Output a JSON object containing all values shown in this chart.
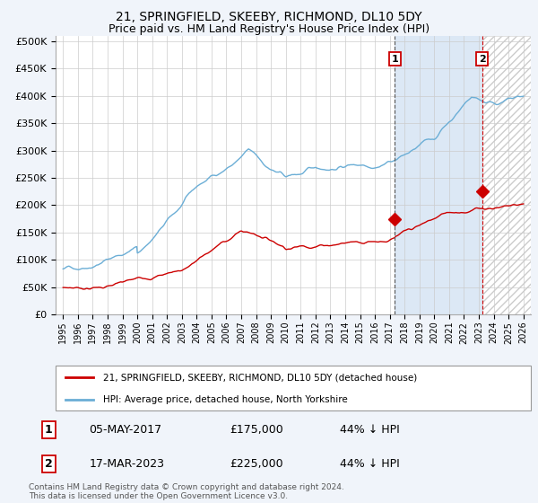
{
  "title": "21, SPRINGFIELD, SKEEBY, RICHMOND, DL10 5DY",
  "subtitle": "Price paid vs. HM Land Registry's House Price Index (HPI)",
  "yticks": [
    0,
    50000,
    100000,
    150000,
    200000,
    250000,
    300000,
    350000,
    400000,
    450000,
    500000
  ],
  "ytick_labels": [
    "£0",
    "£50K",
    "£100K",
    "£150K",
    "£200K",
    "£250K",
    "£300K",
    "£350K",
    "£400K",
    "£450K",
    "£500K"
  ],
  "x_start_year": 1995,
  "x_end_year": 2026,
  "hpi_color": "#6baed6",
  "price_color": "#cc0000",
  "point1_year": 2017.35,
  "point1_value": 175000,
  "point2_year": 2023.21,
  "point2_value": 225000,
  "dashed1_color": "#555555",
  "dashed2_color": "#cc0000",
  "shade_color": "#dce8f5",
  "hatch_color": "#cccccc",
  "legend_house_label": "21, SPRINGFIELD, SKEEBY, RICHMOND, DL10 5DY (detached house)",
  "legend_hpi_label": "HPI: Average price, detached house, North Yorkshire",
  "table_row1_num": "1",
  "table_row1_date": "05-MAY-2017",
  "table_row1_price": "£175,000",
  "table_row1_hpi": "44% ↓ HPI",
  "table_row2_num": "2",
  "table_row2_date": "17-MAR-2023",
  "table_row2_price": "£225,000",
  "table_row2_hpi": "44% ↓ HPI",
  "footnote": "Contains HM Land Registry data © Crown copyright and database right 2024.\nThis data is licensed under the Open Government Licence v3.0.",
  "background_color": "#f0f4fa",
  "plot_bg_color": "#ffffff",
  "grid_color": "#cccccc"
}
